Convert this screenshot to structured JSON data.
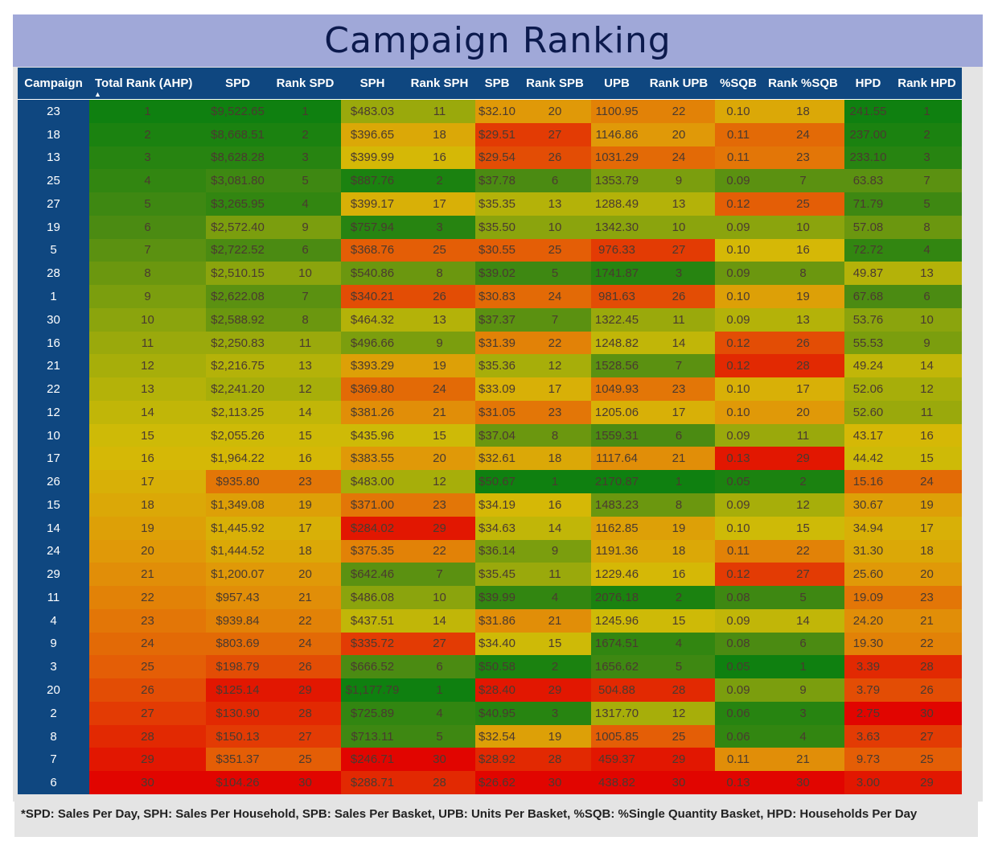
{
  "title": "Campaign Ranking",
  "sorted_column": "Total Rank (AHP)",
  "sort_direction": "ascending",
  "color_scale": {
    "best": "#0f8010",
    "worst": "#e10500"
  },
  "columns": [
    "Campaign",
    "Total Rank (AHP)",
    "SPD",
    "Rank SPD",
    "SPH",
    "Rank SPH",
    "SPB",
    "Rank SPB",
    "UPB",
    "Rank UPB",
    "%SQB",
    "Rank %SQB",
    "HPD",
    "Rank HPD"
  ],
  "rows": [
    [
      "23",
      "1",
      "$9,522.65",
      "1",
      "$483.03",
      "11",
      "$32.10",
      "20",
      "1100.95",
      "22",
      "0.10",
      "18",
      "241.55",
      "1"
    ],
    [
      "18",
      "2",
      "$8,668.51",
      "2",
      "$396.65",
      "18",
      "$29.51",
      "27",
      "1146.86",
      "20",
      "0.11",
      "24",
      "237.00",
      "2"
    ],
    [
      "13",
      "3",
      "$8,628.28",
      "3",
      "$399.99",
      "16",
      "$29.54",
      "26",
      "1031.29",
      "24",
      "0.11",
      "23",
      "233.10",
      "3"
    ],
    [
      "25",
      "4",
      "$3,081.80",
      "5",
      "$887.76",
      "2",
      "$37.78",
      "6",
      "1353.79",
      "9",
      "0.09",
      "7",
      "63.83",
      "7"
    ],
    [
      "27",
      "5",
      "$3,265.95",
      "4",
      "$399.17",
      "17",
      "$35.35",
      "13",
      "1288.49",
      "13",
      "0.12",
      "25",
      "71.79",
      "5"
    ],
    [
      "19",
      "6",
      "$2,572.40",
      "9",
      "$757.94",
      "3",
      "$35.50",
      "10",
      "1342.30",
      "10",
      "0.09",
      "10",
      "57.08",
      "8"
    ],
    [
      "5",
      "7",
      "$2,722.52",
      "6",
      "$368.76",
      "25",
      "$30.55",
      "25",
      "976.33",
      "27",
      "0.10",
      "16",
      "72.72",
      "4"
    ],
    [
      "28",
      "8",
      "$2,510.15",
      "10",
      "$540.86",
      "8",
      "$39.02",
      "5",
      "1741.87",
      "3",
      "0.09",
      "8",
      "49.87",
      "13"
    ],
    [
      "1",
      "9",
      "$2,622.08",
      "7",
      "$340.21",
      "26",
      "$30.83",
      "24",
      "981.63",
      "26",
      "0.10",
      "19",
      "67.68",
      "6"
    ],
    [
      "30",
      "10",
      "$2,588.92",
      "8",
      "$464.32",
      "13",
      "$37.37",
      "7",
      "1322.45",
      "11",
      "0.09",
      "13",
      "53.76",
      "10"
    ],
    [
      "16",
      "11",
      "$2,250.83",
      "11",
      "$496.66",
      "9",
      "$31.39",
      "22",
      "1248.82",
      "14",
      "0.12",
      "26",
      "55.53",
      "9"
    ],
    [
      "21",
      "12",
      "$2,216.75",
      "13",
      "$393.29",
      "19",
      "$35.36",
      "12",
      "1528.56",
      "7",
      "0.12",
      "28",
      "49.24",
      "14"
    ],
    [
      "22",
      "13",
      "$2,241.20",
      "12",
      "$369.80",
      "24",
      "$33.09",
      "17",
      "1049.93",
      "23",
      "0.10",
      "17",
      "52.06",
      "12"
    ],
    [
      "12",
      "14",
      "$2,113.25",
      "14",
      "$381.26",
      "21",
      "$31.05",
      "23",
      "1205.06",
      "17",
      "0.10",
      "20",
      "52.60",
      "11"
    ],
    [
      "10",
      "15",
      "$2,055.26",
      "15",
      "$435.96",
      "15",
      "$37.04",
      "8",
      "1559.31",
      "6",
      "0.09",
      "11",
      "43.17",
      "16"
    ],
    [
      "17",
      "16",
      "$1,964.22",
      "16",
      "$383.55",
      "20",
      "$32.61",
      "18",
      "1117.64",
      "21",
      "0.13",
      "29",
      "44.42",
      "15"
    ],
    [
      "26",
      "17",
      "$935.80",
      "23",
      "$483.00",
      "12",
      "$50.67",
      "1",
      "2170.87",
      "1",
      "0.05",
      "2",
      "15.16",
      "24"
    ],
    [
      "15",
      "18",
      "$1,349.08",
      "19",
      "$371.00",
      "23",
      "$34.19",
      "16",
      "1483.23",
      "8",
      "0.09",
      "12",
      "30.67",
      "19"
    ],
    [
      "14",
      "19",
      "$1,445.92",
      "17",
      "$284.02",
      "29",
      "$34.63",
      "14",
      "1162.85",
      "19",
      "0.10",
      "15",
      "34.94",
      "17"
    ],
    [
      "24",
      "20",
      "$1,444.52",
      "18",
      "$375.35",
      "22",
      "$36.14",
      "9",
      "1191.36",
      "18",
      "0.11",
      "22",
      "31.30",
      "18"
    ],
    [
      "29",
      "21",
      "$1,200.07",
      "20",
      "$642.46",
      "7",
      "$35.45",
      "11",
      "1229.46",
      "16",
      "0.12",
      "27",
      "25.60",
      "20"
    ],
    [
      "11",
      "22",
      "$957.43",
      "21",
      "$486.08",
      "10",
      "$39.99",
      "4",
      "2076.18",
      "2",
      "0.08",
      "5",
      "19.09",
      "23"
    ],
    [
      "4",
      "23",
      "$939.84",
      "22",
      "$437.51",
      "14",
      "$31.86",
      "21",
      "1245.96",
      "15",
      "0.09",
      "14",
      "24.20",
      "21"
    ],
    [
      "9",
      "24",
      "$803.69",
      "24",
      "$335.72",
      "27",
      "$34.40",
      "15",
      "1674.51",
      "4",
      "0.08",
      "6",
      "19.30",
      "22"
    ],
    [
      "3",
      "25",
      "$198.79",
      "26",
      "$666.52",
      "6",
      "$50.58",
      "2",
      "1656.62",
      "5",
      "0.05",
      "1",
      "3.39",
      "28"
    ],
    [
      "20",
      "26",
      "$125.14",
      "29",
      "$1,177.79",
      "1",
      "$28.40",
      "29",
      "504.88",
      "28",
      "0.09",
      "9",
      "3.79",
      "26"
    ],
    [
      "2",
      "27",
      "$130.90",
      "28",
      "$725.89",
      "4",
      "$40.95",
      "3",
      "1317.70",
      "12",
      "0.06",
      "3",
      "2.75",
      "30"
    ],
    [
      "8",
      "28",
      "$150.13",
      "27",
      "$713.11",
      "5",
      "$32.54",
      "19",
      "1005.85",
      "25",
      "0.06",
      "4",
      "3.63",
      "27"
    ],
    [
      "7",
      "29",
      "$351.37",
      "25",
      "$246.71",
      "30",
      "$28.92",
      "28",
      "459.37",
      "29",
      "0.11",
      "21",
      "9.73",
      "25"
    ],
    [
      "6",
      "30",
      "$104.26",
      "30",
      "$288.71",
      "28",
      "$26.62",
      "30",
      "438.82",
      "30",
      "0.13",
      "30",
      "3.00",
      "29"
    ]
  ],
  "footnote": "*SPD: Sales Per Day, SPH: Sales Per Household, SPB: Sales Per Basket, UPB: Units Per Basket, %SQB: %Single Quantity Basket, HPD: Households Per Day"
}
